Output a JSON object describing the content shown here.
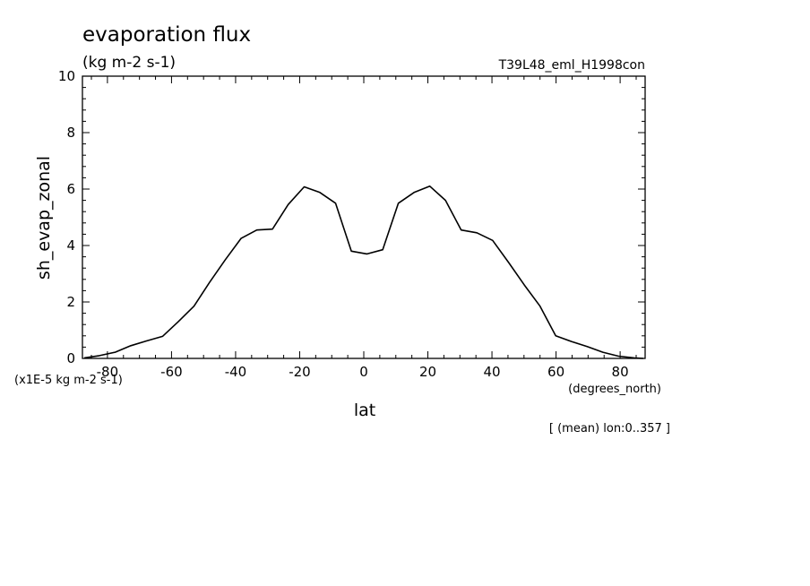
{
  "chart_data": {
    "type": "line",
    "title": "evaporation flux",
    "units": "(kg m-2 s-1)",
    "experiment": "T39L48_eml_H1998con",
    "xlabel": "lat",
    "xunits": "(degrees_north)",
    "ylabel": "sh_evap_zonal",
    "yscale_note": "(x1E-5 kg m-2 s-1)",
    "footnote": "[ (mean) lon:0..357 ]",
    "xlim": [
      -87.8,
      87.8
    ],
    "ylim": [
      0,
      10
    ],
    "xticks": [
      -80,
      -60,
      -40,
      -20,
      0,
      20,
      40,
      60,
      80
    ],
    "xtick_labels": [
      "-80",
      "-60",
      "-40",
      "-20",
      "0",
      "20",
      "40",
      "60",
      "80"
    ],
    "yticks": [
      0,
      2,
      4,
      6,
      8,
      10
    ],
    "ytick_labels": [
      "0",
      "2",
      "4",
      "6",
      "8",
      "10"
    ],
    "grid": false,
    "series": [
      {
        "x": [
          -87.2,
          -82.5,
          -77.6,
          -72.7,
          -67.8,
          -62.8,
          -57.9,
          -53.0,
          -48.1,
          -43.2,
          -38.3,
          -33.4,
          -28.5,
          -23.6,
          -18.6,
          -13.7,
          -8.8,
          -3.9,
          1.0,
          5.9,
          10.8,
          15.7,
          20.6,
          25.5,
          30.4,
          35.3,
          40.2,
          45.2,
          50.1,
          55.0,
          59.9,
          64.8,
          69.7,
          74.6,
          79.5,
          84.4,
          87.2
        ],
        "y": [
          0.02,
          0.1,
          0.22,
          0.45,
          0.62,
          0.78,
          1.3,
          1.85,
          2.7,
          3.5,
          4.25,
          4.55,
          4.58,
          5.45,
          6.08,
          5.88,
          5.5,
          3.8,
          3.7,
          3.85,
          5.5,
          5.88,
          6.1,
          5.6,
          4.55,
          4.45,
          4.18,
          3.4,
          2.6,
          1.85,
          0.8,
          0.6,
          0.42,
          0.22,
          0.08,
          0.02,
          0.0
        ]
      }
    ]
  }
}
